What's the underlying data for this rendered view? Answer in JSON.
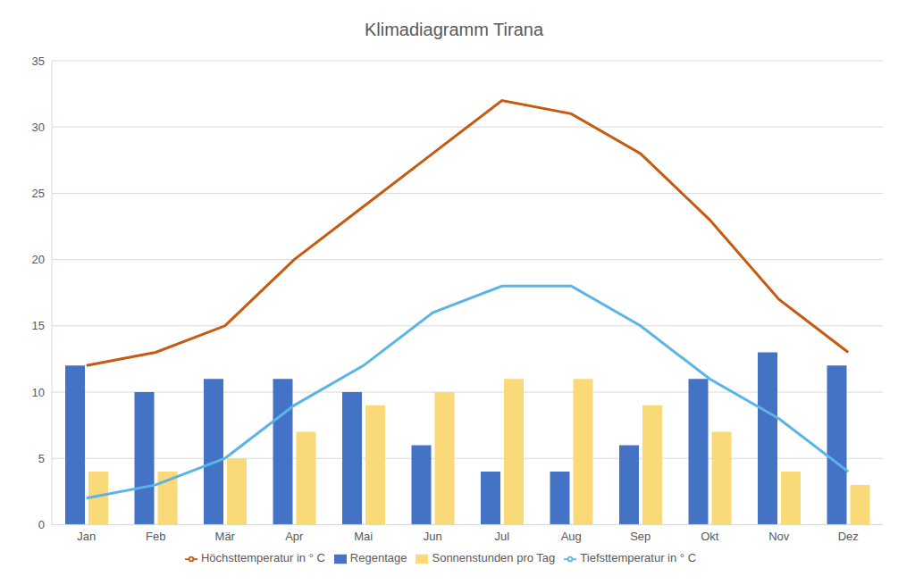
{
  "chart_data": {
    "type": "bar",
    "title": "Klimadiagramm Tirana",
    "categories": [
      "Jan",
      "Feb",
      "Mär",
      "Apr",
      "Mai",
      "Jun",
      "Jul",
      "Aug",
      "Sep",
      "Okt",
      "Nov",
      "Dez"
    ],
    "series": [
      {
        "name": "Regentage",
        "type": "bar",
        "color": "#4472c4",
        "values": [
          12,
          10,
          11,
          11,
          10,
          6,
          4,
          4,
          6,
          11,
          13,
          12
        ]
      },
      {
        "name": "Sonnenstunden pro Tag",
        "type": "bar",
        "color": "#f9d978",
        "values": [
          4,
          4,
          5,
          7,
          9,
          10,
          11,
          11,
          9,
          7,
          4,
          3
        ]
      },
      {
        "name": "Höchsttemperatur in ° C",
        "type": "line",
        "color": "#c55a11",
        "values": [
          12,
          13,
          15,
          20,
          24,
          28,
          32,
          31,
          28,
          23,
          17,
          13
        ]
      },
      {
        "name": "Tiefsttemperatur in ° C",
        "type": "line",
        "color": "#5bb4e8",
        "values": [
          2,
          3,
          5,
          9,
          12,
          16,
          18,
          18,
          15,
          11,
          8,
          4
        ]
      }
    ],
    "ylim": [
      0,
      35
    ],
    "yticks": [
      0,
      5,
      10,
      15,
      20,
      25,
      30,
      35
    ],
    "grid": true,
    "legend": "bottom"
  }
}
